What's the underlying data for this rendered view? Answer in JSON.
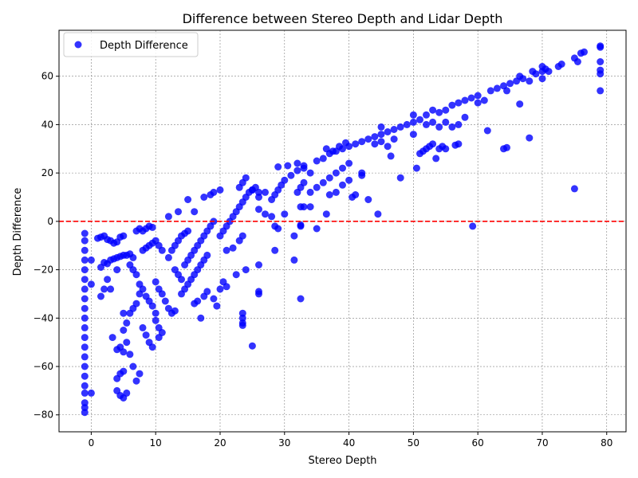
{
  "chart_data": {
    "type": "scatter",
    "title": "Difference between Stereo Depth and Lidar Depth",
    "xlabel": "Stereo Depth",
    "ylabel": "Depth Difference",
    "xlim": [
      -5,
      83
    ],
    "ylim": [
      -87,
      79
    ],
    "xticks": [
      0,
      10,
      20,
      30,
      40,
      50,
      60,
      70,
      80
    ],
    "yticks": [
      -80,
      -60,
      -40,
      -20,
      0,
      20,
      40,
      60
    ],
    "grid": true,
    "legend_position": "upper-left",
    "reference_line": {
      "y": 0,
      "color": "#ff0000",
      "style": "dashed"
    },
    "marker_color": "#0000ff",
    "series": [
      {
        "name": "Depth Difference",
        "points": [
          [
            -1,
            -5
          ],
          [
            -1,
            -8
          ],
          [
            -1,
            -12
          ],
          [
            -1,
            -16
          ],
          [
            -1,
            -20
          ],
          [
            -1,
            -24
          ],
          [
            -1,
            -28
          ],
          [
            -1,
            -32
          ],
          [
            -1,
            -36
          ],
          [
            -1,
            -40
          ],
          [
            -1,
            -44
          ],
          [
            -1,
            -48
          ],
          [
            -1,
            -52
          ],
          [
            -1,
            -56
          ],
          [
            -1,
            -60
          ],
          [
            -1,
            -64
          ],
          [
            -1,
            -68
          ],
          [
            -1,
            -71
          ],
          [
            -1,
            -75
          ],
          [
            -1,
            -77
          ],
          [
            -1,
            -79
          ],
          [
            0,
            -16
          ],
          [
            0,
            -26
          ],
          [
            0,
            -71
          ],
          [
            1,
            -7
          ],
          [
            1.5,
            -6.5
          ],
          [
            2,
            -6
          ],
          [
            2.5,
            -7.5
          ],
          [
            3,
            -8
          ],
          [
            3.5,
            -9
          ],
          [
            4,
            -8.5
          ],
          [
            4.5,
            -6.5
          ],
          [
            5,
            -6
          ],
          [
            1.5,
            -19
          ],
          [
            2,
            -17
          ],
          [
            2.5,
            -17.5
          ],
          [
            3,
            -16
          ],
          [
            3.5,
            -15.5
          ],
          [
            4,
            -15
          ],
          [
            4.5,
            -14.5
          ],
          [
            5,
            -14
          ],
          [
            5.5,
            -14
          ],
          [
            6,
            -13.5
          ],
          [
            6.5,
            -15
          ],
          [
            1.5,
            -31
          ],
          [
            2,
            -28
          ],
          [
            2.5,
            -24
          ],
          [
            3,
            -28
          ],
          [
            3.3,
            -48
          ],
          [
            4,
            -20
          ],
          [
            4,
            -53
          ],
          [
            4.5,
            -52
          ],
          [
            5,
            -54
          ],
          [
            4,
            -65
          ],
          [
            4.5,
            -63
          ],
          [
            5,
            -62
          ],
          [
            4,
            -70
          ],
          [
            4.5,
            -72
          ],
          [
            5,
            -73
          ],
          [
            5.5,
            -71
          ],
          [
            5,
            -45
          ],
          [
            5.5,
            -42
          ],
          [
            6,
            -38
          ],
          [
            6.5,
            -36
          ],
          [
            7,
            -34
          ],
          [
            7.5,
            -30
          ],
          [
            5,
            -38
          ],
          [
            5.5,
            -50
          ],
          [
            6,
            -55
          ],
          [
            6.5,
            -60
          ],
          [
            7,
            -66
          ],
          [
            7.5,
            -63
          ],
          [
            6,
            -18
          ],
          [
            6.5,
            -20
          ],
          [
            7,
            -22
          ],
          [
            7.5,
            -26
          ],
          [
            8,
            -28
          ],
          [
            8.5,
            -31
          ],
          [
            9,
            -33
          ],
          [
            9.5,
            -35
          ],
          [
            10,
            -38
          ],
          [
            8,
            -44
          ],
          [
            8.5,
            -47
          ],
          [
            9,
            -50
          ],
          [
            9.5,
            -52
          ],
          [
            7,
            -4
          ],
          [
            7.5,
            -3
          ],
          [
            8,
            -4
          ],
          [
            8.5,
            -3
          ],
          [
            9,
            -2
          ],
          [
            9.5,
            -2.5
          ],
          [
            8,
            -12
          ],
          [
            8.5,
            -11
          ],
          [
            9,
            -10
          ],
          [
            9.5,
            -9
          ],
          [
            10,
            -8
          ],
          [
            10.5,
            -10
          ],
          [
            11,
            -12
          ],
          [
            10,
            -25
          ],
          [
            10.5,
            -28
          ],
          [
            11,
            -30
          ],
          [
            11.5,
            -33
          ],
          [
            12,
            -36
          ],
          [
            12.5,
            -38
          ],
          [
            13,
            -37
          ],
          [
            10,
            -41
          ],
          [
            10.5,
            -44
          ],
          [
            11,
            -46
          ],
          [
            10.5,
            -48
          ],
          [
            12,
            2
          ],
          [
            13.5,
            4
          ],
          [
            15,
            9
          ],
          [
            16,
            4
          ],
          [
            17.5,
            10
          ],
          [
            18.5,
            11
          ],
          [
            19,
            12
          ],
          [
            20,
            13
          ],
          [
            12,
            -15
          ],
          [
            12.5,
            -12
          ],
          [
            13,
            -10
          ],
          [
            13.5,
            -8
          ],
          [
            14,
            -6
          ],
          [
            14.5,
            -5
          ],
          [
            15,
            -4
          ],
          [
            13,
            -20
          ],
          [
            13.5,
            -22
          ],
          [
            14,
            -24
          ],
          [
            14.5,
            -18
          ],
          [
            15,
            -16
          ],
          [
            15.5,
            -14
          ],
          [
            16,
            -12
          ],
          [
            16.5,
            -10
          ],
          [
            17,
            -8
          ],
          [
            17.5,
            -6
          ],
          [
            18,
            -4
          ],
          [
            18.5,
            -2
          ],
          [
            19,
            0
          ],
          [
            14,
            -30
          ],
          [
            14.5,
            -28
          ],
          [
            15,
            -26
          ],
          [
            15.5,
            -24
          ],
          [
            16,
            -22
          ],
          [
            16.5,
            -20
          ],
          [
            17,
            -18
          ],
          [
            17.5,
            -16
          ],
          [
            18,
            -14
          ],
          [
            16,
            -34
          ],
          [
            16.5,
            -33
          ],
          [
            17,
            -40
          ],
          [
            17.5,
            -31
          ],
          [
            18,
            -29
          ],
          [
            19,
            -32
          ],
          [
            19.5,
            -35
          ],
          [
            20,
            -28
          ],
          [
            20.5,
            -25
          ],
          [
            21,
            -27
          ],
          [
            20,
            -6
          ],
          [
            20.5,
            -4
          ],
          [
            21,
            -2
          ],
          [
            21.5,
            0
          ],
          [
            22,
            2
          ],
          [
            22.5,
            4
          ],
          [
            23,
            6
          ],
          [
            23.5,
            8
          ],
          [
            24,
            10
          ],
          [
            24.5,
            12
          ],
          [
            25,
            13
          ],
          [
            25.5,
            14
          ],
          [
            21,
            -12
          ],
          [
            22,
            -11
          ],
          [
            22.5,
            -22
          ],
          [
            23,
            -8
          ],
          [
            23.5,
            -6
          ],
          [
            24,
            -20
          ],
          [
            23,
            14
          ],
          [
            23.5,
            16
          ],
          [
            24,
            18
          ],
          [
            25,
            13
          ],
          [
            26,
            12
          ],
          [
            26,
            -18
          ],
          [
            26,
            -29
          ],
          [
            26,
            -30
          ],
          [
            23.5,
            -38
          ],
          [
            23.5,
            -40
          ],
          [
            23.5,
            -42
          ],
          [
            23.5,
            -43
          ],
          [
            25,
            -51.5
          ],
          [
            26,
            10
          ],
          [
            27,
            12
          ],
          [
            28,
            9
          ],
          [
            28.5,
            11
          ],
          [
            29,
            13
          ],
          [
            29.5,
            15
          ],
          [
            30,
            17
          ],
          [
            31,
            19
          ],
          [
            32,
            21
          ],
          [
            33,
            23
          ],
          [
            26,
            5
          ],
          [
            27,
            3
          ],
          [
            28,
            2
          ],
          [
            28.5,
            -2
          ],
          [
            29,
            -3
          ],
          [
            30,
            3
          ],
          [
            28.5,
            -12
          ],
          [
            31.5,
            -6
          ],
          [
            31.5,
            -16
          ],
          [
            29,
            22.5
          ],
          [
            30.5,
            23
          ],
          [
            32,
            24
          ],
          [
            33,
            22
          ],
          [
            34,
            20
          ],
          [
            32,
            12
          ],
          [
            32.5,
            14
          ],
          [
            33,
            16
          ],
          [
            34,
            12
          ],
          [
            35,
            14
          ],
          [
            36,
            16
          ],
          [
            37,
            18
          ],
          [
            38,
            20
          ],
          [
            39,
            22
          ],
          [
            40,
            24
          ],
          [
            32.5,
            6
          ],
          [
            33,
            6
          ],
          [
            34,
            6
          ],
          [
            32.5,
            -1.5
          ],
          [
            32.5,
            -2
          ],
          [
            35,
            -3
          ],
          [
            36.5,
            3
          ],
          [
            32.5,
            -32
          ],
          [
            35,
            25
          ],
          [
            36,
            26
          ],
          [
            37,
            28
          ],
          [
            38,
            29
          ],
          [
            39,
            30
          ],
          [
            40,
            31
          ],
          [
            41,
            32
          ],
          [
            42,
            33
          ],
          [
            43,
            34
          ],
          [
            44,
            35
          ],
          [
            45,
            36
          ],
          [
            46,
            37
          ],
          [
            47,
            38
          ],
          [
            48,
            39
          ],
          [
            49,
            40
          ],
          [
            50,
            41
          ],
          [
            36.5,
            30
          ],
          [
            37.5,
            29
          ],
          [
            38.5,
            31
          ],
          [
            39.5,
            32.5
          ],
          [
            37,
            11
          ],
          [
            38,
            12
          ],
          [
            39,
            15
          ],
          [
            40,
            17
          ],
          [
            40.5,
            10
          ],
          [
            41,
            11
          ],
          [
            42,
            19
          ],
          [
            42,
            20
          ],
          [
            43,
            9
          ],
          [
            44,
            32
          ],
          [
            45,
            33
          ],
          [
            45,
            39
          ],
          [
            46,
            31
          ],
          [
            46.5,
            27
          ],
          [
            47,
            34
          ],
          [
            48,
            18
          ],
          [
            44.5,
            3
          ],
          [
            50,
            36
          ],
          [
            50.5,
            22
          ],
          [
            51,
            28
          ],
          [
            51.5,
            29
          ],
          [
            52,
            30
          ],
          [
            52.5,
            31
          ],
          [
            53,
            32
          ],
          [
            53.5,
            26
          ],
          [
            54,
            30
          ],
          [
            54.5,
            31
          ],
          [
            55,
            30
          ],
          [
            50,
            44
          ],
          [
            51,
            42
          ],
          [
            52,
            44
          ],
          [
            53,
            46
          ],
          [
            54,
            45
          ],
          [
            55,
            46
          ],
          [
            56,
            48
          ],
          [
            57,
            49
          ],
          [
            58,
            50
          ],
          [
            59,
            51
          ],
          [
            60,
            52
          ],
          [
            52,
            40
          ],
          [
            53,
            41
          ],
          [
            54,
            39
          ],
          [
            55,
            41
          ],
          [
            56,
            39
          ],
          [
            57,
            40
          ],
          [
            58,
            43
          ],
          [
            56.5,
            31.5
          ],
          [
            57,
            32
          ],
          [
            59.2,
            -2
          ],
          [
            61.5,
            37.5
          ],
          [
            60,
            49
          ],
          [
            61,
            50
          ],
          [
            62,
            54
          ],
          [
            63,
            55
          ],
          [
            64,
            56
          ],
          [
            65,
            57
          ],
          [
            66,
            58
          ],
          [
            66.5,
            60
          ],
          [
            67,
            59
          ],
          [
            64,
            30
          ],
          [
            64.5,
            30.5
          ],
          [
            66.5,
            48.5
          ],
          [
            68,
            34.5
          ],
          [
            64.5,
            54
          ],
          [
            68,
            58
          ],
          [
            68.5,
            62
          ],
          [
            69,
            61
          ],
          [
            70,
            62
          ],
          [
            70,
            64
          ],
          [
            70.5,
            63
          ],
          [
            71,
            62
          ],
          [
            72.5,
            64
          ],
          [
            73,
            65
          ],
          [
            70,
            59
          ],
          [
            75,
            67.5
          ],
          [
            75.5,
            66
          ],
          [
            76,
            69.5
          ],
          [
            76.5,
            70
          ],
          [
            75,
            13.5
          ],
          [
            79,
            72
          ],
          [
            79,
            72.5
          ],
          [
            79,
            66
          ],
          [
            79,
            62.5
          ],
          [
            79,
            61
          ],
          [
            79,
            54
          ]
        ]
      }
    ]
  }
}
